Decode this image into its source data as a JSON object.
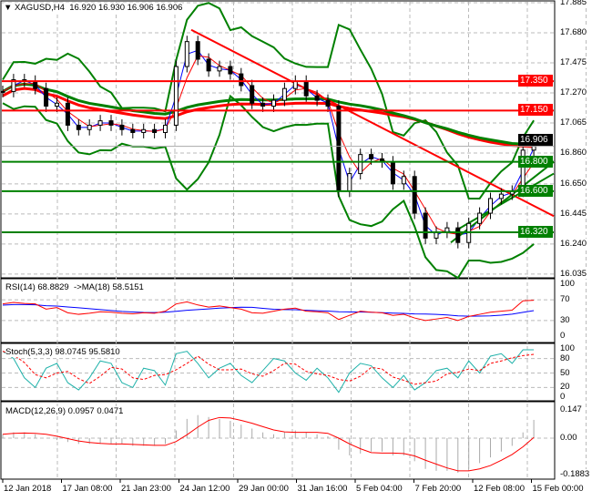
{
  "header": {
    "symbol": "XAGUSD,H4",
    "open": "16.920",
    "high": "16.930",
    "low": "16.906",
    "close": "16.906"
  },
  "indicators": {
    "rsi": "RSI(14) 68.8829  ->MA(18) 58.5151",
    "stoch": "Stoch(5,3,3) 98.0745 95.5810",
    "macd": "MACD(12,26,9) 0.0957 0.0471"
  },
  "colors": {
    "support": "#008000",
    "resistance": "#ff0000",
    "current": "#000000"
  },
  "chart_data": [
    {
      "type": "candlestick",
      "title": "XAGUSD,H4",
      "ylim": [
        16.035,
        17.885
      ],
      "yticks": [
        "17.885",
        "17.680",
        "17.475",
        "17.270",
        "17.065",
        "16.860",
        "16.650",
        "16.445",
        "16.240",
        "16.035"
      ],
      "xticks": [
        "12 Jan 2018",
        "17 Jan 08:00",
        "21 Jan 23:00",
        "24 Jan 12:00",
        "29 Jan 00:00",
        "31 Jan 16:00",
        "5 Feb 04:00",
        "7 Feb 20:00",
        "12 Feb 08:00",
        "15 Feb 00:00"
      ],
      "close": [
        17.28,
        17.36,
        17.35,
        17.3,
        17.18,
        17.2,
        17.05,
        17.02,
        17.05,
        17.08,
        17.05,
        17.02,
        17.0,
        17.02,
        17.0,
        17.05,
        17.45,
        17.62,
        17.5,
        17.42,
        17.45,
        17.4,
        17.32,
        17.2,
        17.18,
        17.22,
        17.3,
        17.35,
        17.25,
        17.22,
        17.18,
        16.6,
        16.72,
        16.85,
        16.82,
        16.8,
        16.65,
        16.7,
        16.45,
        16.28,
        16.32,
        16.35,
        16.25,
        16.38,
        16.45,
        16.55,
        16.58,
        16.6,
        16.88,
        16.906
      ],
      "levels": [
        {
          "value": "17.350",
          "color": "#ff0000"
        },
        {
          "value": "17.150",
          "color": "#ff0000"
        },
        {
          "value": "16.800",
          "color": "#008000"
        },
        {
          "value": "16.600",
          "color": "#008000"
        },
        {
          "value": "16.320",
          "color": "#008000"
        }
      ],
      "current_price": "16.906"
    },
    {
      "type": "line",
      "name": "RSI(14)",
      "ylim": [
        0,
        100
      ],
      "yticks": [
        "100",
        "70",
        "30",
        "0"
      ],
      "values": [
        62,
        65,
        63,
        62,
        52,
        55,
        45,
        42,
        44,
        47,
        46,
        44,
        43,
        45,
        44,
        48,
        62,
        66,
        60,
        56,
        58,
        55,
        52,
        45,
        44,
        48,
        52,
        54,
        48,
        47,
        45,
        32,
        40,
        48,
        46,
        45,
        40,
        42,
        35,
        30,
        33,
        36,
        30,
        38,
        42,
        46,
        48,
        50,
        68,
        69
      ]
    },
    {
      "type": "line",
      "name": "Stoch(5,3,3)",
      "ylim": [
        0,
        100
      ],
      "yticks": [
        "100",
        "80",
        "50",
        "20",
        "0"
      ],
      "values": [
        95,
        80,
        40,
        20,
        60,
        70,
        30,
        15,
        40,
        75,
        70,
        30,
        20,
        60,
        55,
        25,
        90,
        95,
        70,
        40,
        60,
        70,
        45,
        30,
        55,
        80,
        75,
        50,
        35,
        60,
        40,
        10,
        50,
        70,
        65,
        40,
        20,
        45,
        15,
        30,
        55,
        60,
        40,
        75,
        50,
        85,
        90,
        70,
        98,
        98
      ]
    },
    {
      "type": "bar",
      "name": "MACD(12,26,9)",
      "ylim": [
        -0.1883,
        0.147
      ],
      "yticks": [
        "0.147",
        "0.00",
        "-0.1883"
      ],
      "values": [
        0.02,
        0.03,
        0.03,
        0.02,
        0.0,
        -0.01,
        -0.02,
        -0.03,
        -0.03,
        -0.03,
        -0.03,
        -0.03,
        -0.04,
        -0.04,
        -0.04,
        -0.03,
        0.04,
        0.1,
        0.12,
        0.11,
        0.1,
        0.09,
        0.07,
        0.05,
        0.03,
        0.02,
        0.03,
        0.04,
        0.03,
        0.02,
        0.01,
        -0.06,
        -0.09,
        -0.08,
        -0.07,
        -0.07,
        -0.09,
        -0.09,
        -0.12,
        -0.16,
        -0.17,
        -0.17,
        -0.18,
        -0.16,
        -0.13,
        -0.1,
        -0.07,
        -0.04,
        0.03,
        0.095
      ]
    }
  ]
}
